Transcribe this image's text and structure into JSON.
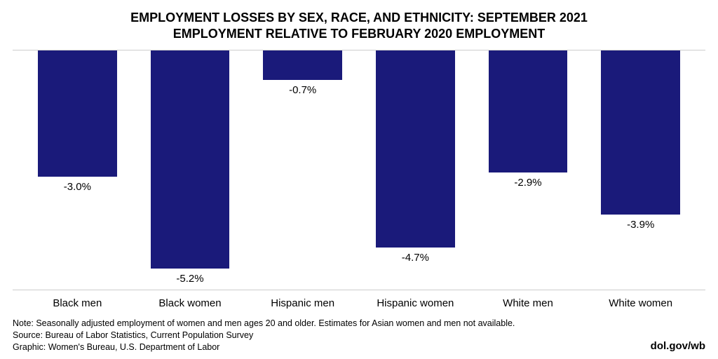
{
  "chart": {
    "type": "bar",
    "title_line1": "EMPLOYMENT LOSSES BY SEX, RACE, AND ETHNICITY: SEPTEMBER 2021",
    "title_line2": "EMPLOYMENT RELATIVE TO FEBRUARY 2020 EMPLOYMENT",
    "title_fontsize": 18,
    "title_fontweight": "900",
    "title_color": "#000000",
    "categories": [
      "Black men",
      "Black women",
      "Hispanic men",
      "Hispanic women",
      "White men",
      "White women"
    ],
    "values": [
      -3.0,
      -5.2,
      -0.7,
      -4.7,
      -2.9,
      -3.9
    ],
    "value_labels": [
      "-3.0%",
      "-5.2%",
      "-0.7%",
      "-4.7%",
      "-2.9%",
      "-3.9%"
    ],
    "bar_color": "#1a1a7a",
    "background_color": "#ffffff",
    "grid_color": "#cccccc",
    "ylim": [
      -5.7,
      0
    ],
    "bar_width_pct": 70,
    "label_fontsize": 15,
    "xtick_fontsize": 15
  },
  "footer": {
    "note": "Note: Seasonally adjusted employment of women and men ages 20 and older. Estimates for Asian women and men not available.",
    "source": "Source: Bureau of Labor Statistics, Current Population Survey",
    "graphic": "Graphic: Women's Bureau, U.S. Department of Labor",
    "attribution": "dol.gov/wb",
    "fontsize": 12.5,
    "color": "#000000"
  }
}
